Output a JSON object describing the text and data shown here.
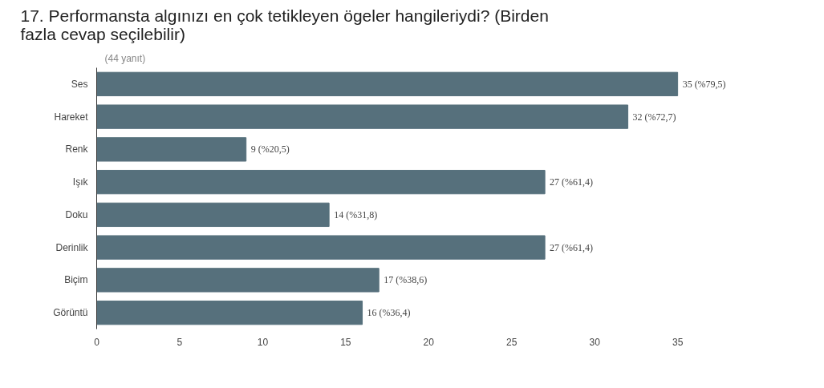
{
  "chart_data": {
    "type": "bar",
    "orientation": "horizontal",
    "title": "17. Performansta algınızı en çok tetikleyen ögeler hangileriydi? (Birden fazla cevap seçilebilir)",
    "subtitle": "(44 yanıt)",
    "categories": [
      "Ses",
      "Hareket",
      "Renk",
      "Işık",
      "Doku",
      "Derinlik",
      "Biçim",
      "Görüntü"
    ],
    "values": [
      35,
      32,
      9,
      27,
      14,
      27,
      17,
      16
    ],
    "value_labels": [
      "35 (%79,5)",
      "32 (%72,7)",
      "9 (%20,5)",
      "27 (%61,4)",
      "14 (%31,8)",
      "27 (%61,4)",
      "17 (%38,6)",
      "16 (%36,4)"
    ],
    "color": "#56707c",
    "xlim": [
      0,
      35
    ],
    "xticks": [
      0,
      5,
      10,
      15,
      20,
      25,
      30,
      35
    ],
    "grid": false,
    "legend": false
  }
}
